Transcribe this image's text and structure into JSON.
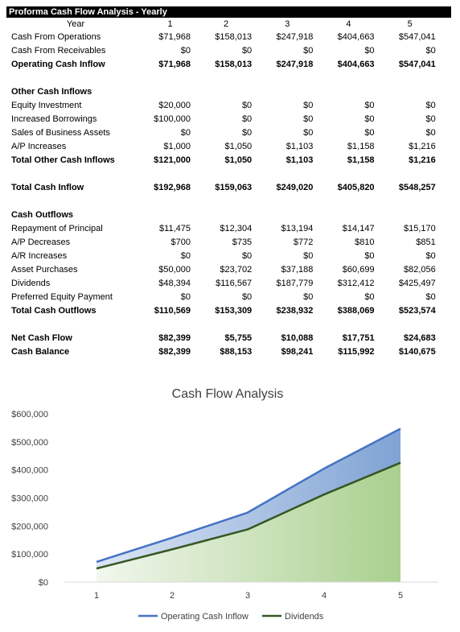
{
  "table": {
    "title": "Proforma Cash Flow Analysis - Yearly",
    "year_label": "Year",
    "years": [
      "1",
      "2",
      "3",
      "4",
      "5"
    ],
    "rows": [
      {
        "label": "Cash From Operations",
        "bold": false,
        "values": [
          "$71,968",
          "$158,013",
          "$247,918",
          "$404,663",
          "$547,041"
        ]
      },
      {
        "label": "Cash From Receivables",
        "bold": false,
        "values": [
          "$0",
          "$0",
          "$0",
          "$0",
          "$0"
        ]
      },
      {
        "label": "Operating Cash Inflow",
        "bold": true,
        "values": [
          "$71,968",
          "$158,013",
          "$247,918",
          "$404,663",
          "$547,041"
        ]
      },
      {
        "label": "",
        "bold": false,
        "values": [
          "",
          "",
          "",
          "",
          ""
        ]
      },
      {
        "label": "Other Cash Inflows",
        "bold": true,
        "values": [
          "",
          "",
          "",
          "",
          ""
        ]
      },
      {
        "label": "Equity Investment",
        "bold": false,
        "values": [
          "$20,000",
          "$0",
          "$0",
          "$0",
          "$0"
        ]
      },
      {
        "label": "Increased Borrowings",
        "bold": false,
        "values": [
          "$100,000",
          "$0",
          "$0",
          "$0",
          "$0"
        ]
      },
      {
        "label": "Sales of Business Assets",
        "bold": false,
        "values": [
          "$0",
          "$0",
          "$0",
          "$0",
          "$0"
        ]
      },
      {
        "label": "A/P Increases",
        "bold": false,
        "values": [
          "$1,000",
          "$1,050",
          "$1,103",
          "$1,158",
          "$1,216"
        ]
      },
      {
        "label": "Total Other Cash Inflows",
        "bold": true,
        "values": [
          "$121,000",
          "$1,050",
          "$1,103",
          "$1,158",
          "$1,216"
        ]
      },
      {
        "label": "",
        "bold": false,
        "values": [
          "",
          "",
          "",
          "",
          ""
        ]
      },
      {
        "label": "Total Cash Inflow",
        "bold": true,
        "values": [
          "$192,968",
          "$159,063",
          "$249,020",
          "$405,820",
          "$548,257"
        ]
      },
      {
        "label": "",
        "bold": false,
        "values": [
          "",
          "",
          "",
          "",
          ""
        ]
      },
      {
        "label": "Cash Outflows",
        "bold": true,
        "values": [
          "",
          "",
          "",
          "",
          ""
        ]
      },
      {
        "label": "Repayment of Principal",
        "bold": false,
        "values": [
          "$11,475",
          "$12,304",
          "$13,194",
          "$14,147",
          "$15,170"
        ]
      },
      {
        "label": "A/P Decreases",
        "bold": false,
        "values": [
          "$700",
          "$735",
          "$772",
          "$810",
          "$851"
        ]
      },
      {
        "label": "A/R Increases",
        "bold": false,
        "values": [
          "$0",
          "$0",
          "$0",
          "$0",
          "$0"
        ]
      },
      {
        "label": "Asset Purchases",
        "bold": false,
        "values": [
          "$50,000",
          "$23,702",
          "$37,188",
          "$60,699",
          "$82,056"
        ]
      },
      {
        "label": "Dividends",
        "bold": false,
        "values": [
          "$48,394",
          "$116,567",
          "$187,779",
          "$312,412",
          "$425,497"
        ]
      },
      {
        "label": "Preferred Equity Payment",
        "bold": false,
        "values": [
          "$0",
          "$0",
          "$0",
          "$0",
          "$0"
        ]
      },
      {
        "label": "Total Cash Outflows",
        "bold": true,
        "values": [
          "$110,569",
          "$153,309",
          "$238,932",
          "$388,069",
          "$523,574"
        ]
      },
      {
        "label": "",
        "bold": false,
        "values": [
          "",
          "",
          "",
          "",
          ""
        ]
      },
      {
        "label": "Net Cash Flow",
        "bold": true,
        "values": [
          "$82,399",
          "$5,755",
          "$10,088",
          "$17,751",
          "$24,683"
        ]
      },
      {
        "label": "Cash Balance",
        "bold": true,
        "values": [
          "$82,399",
          "$88,153",
          "$98,241",
          "$115,992",
          "$140,675"
        ]
      }
    ]
  },
  "chart_data": {
    "type": "area",
    "title": "Cash Flow Analysis",
    "xlabel": "",
    "ylabel": "",
    "categories": [
      "1",
      "2",
      "3",
      "4",
      "5"
    ],
    "ylim": [
      0,
      600000
    ],
    "yticks": [
      0,
      100000,
      200000,
      300000,
      400000,
      500000,
      600000
    ],
    "ytick_labels": [
      "$0",
      "$100,000",
      "$200,000",
      "$300,000",
      "$400,000",
      "$500,000",
      "$600,000"
    ],
    "grid": false,
    "legend": "bottom",
    "series": [
      {
        "name": "Operating Cash Inflow",
        "values": [
          71968,
          158013,
          247918,
          404663,
          547041
        ],
        "color": "#4472c4"
      },
      {
        "name": "Dividends",
        "values": [
          48394,
          116567,
          187779,
          312412,
          425497
        ],
        "color": "#375623"
      }
    ]
  }
}
